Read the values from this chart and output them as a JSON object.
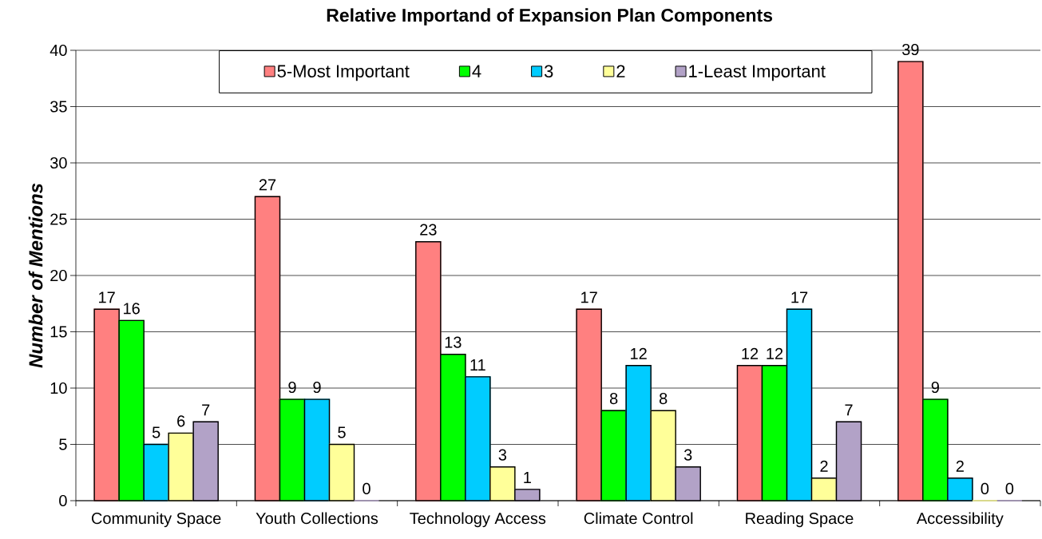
{
  "chart_data": {
    "type": "bar",
    "title": "Relative Importand of Expansion Plan Components",
    "ylabel": "Number of Mentions",
    "categories": [
      "Community Space",
      "Youth Collections",
      "Technology Access",
      "Climate Control",
      "Reading Space",
      "Accessibility"
    ],
    "series": [
      {
        "name": "5-Most Important",
        "color": "#ff8080",
        "values": [
          17,
          27,
          23,
          17,
          12,
          39
        ]
      },
      {
        "name": "4",
        "color": "#00ff00",
        "values": [
          16,
          9,
          13,
          8,
          12,
          9
        ]
      },
      {
        "name": "3",
        "color": "#00ccff",
        "values": [
          5,
          9,
          11,
          12,
          17,
          2
        ]
      },
      {
        "name": "2",
        "color": "#ffff99",
        "values": [
          6,
          5,
          3,
          8,
          2,
          0
        ]
      },
      {
        "name": "1-Least Important",
        "color": "#b2a2c7",
        "values": [
          7,
          0,
          1,
          3,
          7,
          0
        ]
      }
    ],
    "ylim": [
      0,
      40
    ],
    "yticks": [
      0,
      5,
      10,
      15,
      20,
      25,
      30,
      35,
      40
    ],
    "grid": "y",
    "legend": "top",
    "data_labels": true
  }
}
